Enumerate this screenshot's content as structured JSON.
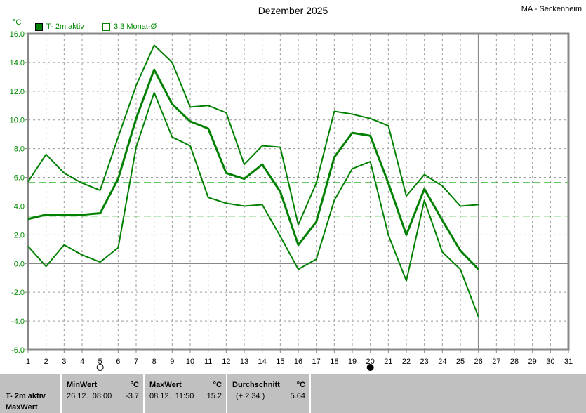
{
  "header": {
    "title": "Dezember 2025",
    "station": "MA - Seckenheim",
    "unit": "°C"
  },
  "legend": [
    {
      "label": "T- 2m aktiv",
      "color": "#008000",
      "filled": true
    },
    {
      "label": "3.3 Monat-Ø",
      "color": "#008000",
      "filled": false
    }
  ],
  "chart_data": {
    "type": "line",
    "title": "Dezember 2025",
    "ylabel": "°C",
    "ylim": [
      -6,
      16
    ],
    "yticks": [
      "16.0",
      "14.0",
      "12.0",
      "10.0",
      "8.0",
      "6.0",
      "4.0",
      "2.0",
      "0.0",
      "-2.0",
      "-4.0",
      "-6.0"
    ],
    "x": [
      1,
      2,
      3,
      4,
      5,
      6,
      7,
      8,
      9,
      10,
      11,
      12,
      13,
      14,
      15,
      16,
      17,
      18,
      19,
      20,
      21,
      22,
      23,
      24,
      25,
      26
    ],
    "xticks": [
      "1",
      "2",
      "3",
      "4",
      "5",
      "6",
      "7",
      "8",
      "9",
      "10",
      "11",
      "12",
      "13",
      "14",
      "15",
      "16",
      "17",
      "18",
      "19",
      "20",
      "21",
      "22",
      "23",
      "24",
      "25",
      "26",
      "27",
      "28",
      "29",
      "30",
      "31"
    ],
    "series": [
      {
        "name": "Max",
        "values": [
          5.7,
          7.6,
          6.3,
          5.6,
          5.1,
          8.8,
          12.4,
          15.2,
          14.0,
          10.9,
          11.0,
          10.5,
          6.9,
          8.2,
          8.1,
          2.7,
          5.6,
          10.6,
          10.4,
          10.1,
          9.6,
          4.7,
          6.2,
          5.4,
          4.0,
          4.1
        ]
      },
      {
        "name": "Mittel",
        "values": [
          3.1,
          3.4,
          3.4,
          3.4,
          3.5,
          5.9,
          10.1,
          13.5,
          11.1,
          9.9,
          9.4,
          6.3,
          5.9,
          6.9,
          5.0,
          1.3,
          2.9,
          7.4,
          9.1,
          8.9,
          5.6,
          2.0,
          5.2,
          3.0,
          0.9,
          -0.4
        ]
      },
      {
        "name": "Min",
        "values": [
          1.2,
          -0.2,
          1.3,
          0.6,
          0.1,
          1.1,
          8.1,
          11.9,
          8.8,
          8.2,
          4.6,
          4.2,
          4.0,
          4.1,
          1.9,
          -0.4,
          0.3,
          4.4,
          6.6,
          7.1,
          2.0,
          -1.2,
          4.4,
          0.8,
          -0.4,
          -3.7
        ]
      }
    ],
    "reference_lines": [
      {
        "name": "Durchschnitt",
        "value": 5.64
      },
      {
        "name": "Monat-Ø",
        "value": 3.3
      }
    ],
    "today": 26,
    "moon": [
      {
        "day": 5,
        "phase": "full"
      },
      {
        "day": 20,
        "phase": "new"
      }
    ]
  },
  "stats": {
    "row_label1": "T- 2m aktiv",
    "row_label2": "MaxWert",
    "min": {
      "label": "MinWert",
      "unit": "°C",
      "date": "26.12.  08:00",
      "value": "-3.7"
    },
    "max": {
      "label": "MaxWert",
      "unit": "°C",
      "date": "08.12.  11:50",
      "value": "15.2"
    },
    "avg": {
      "label": "Durchschnitt",
      "unit": "°C",
      "diff": "(+ 2.34 )",
      "value": "5.64"
    }
  }
}
